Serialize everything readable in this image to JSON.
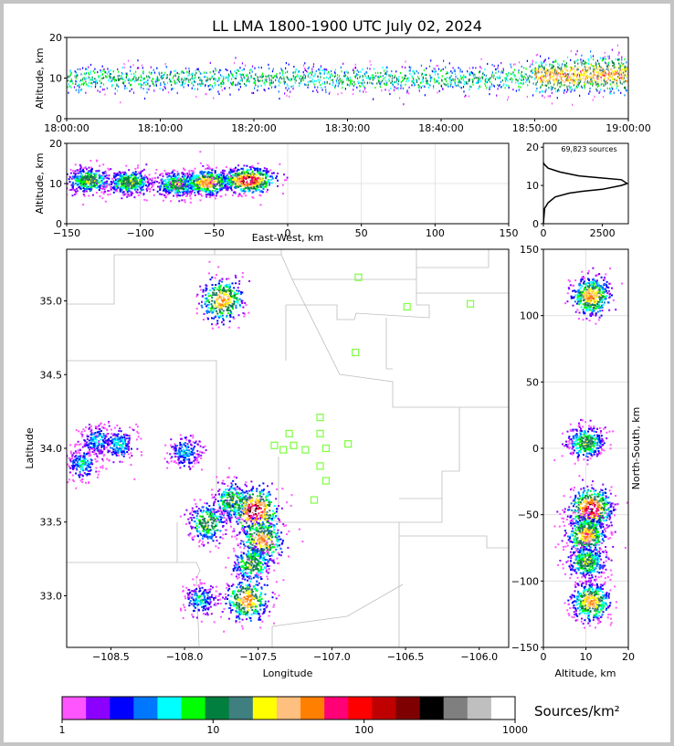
{
  "title": "LL LMA 1800-1900 UTC July 02, 2024",
  "colors": {
    "palette": [
      "#ff55ff",
      "#8c00ff",
      "#0000ff",
      "#0077ff",
      "#00ffff",
      "#00ff00",
      "#007f3f",
      "#3f7f7f",
      "#ffff00",
      "#ffbf7f",
      "#ff7f00",
      "#ff0077",
      "#ff0000",
      "#bf0000",
      "#7f0000",
      "#000000",
      "#7f7f7f",
      "#bfbfbf",
      "#ffffff"
    ],
    "station": "#7cff3f",
    "border": "#bdbdbd"
  },
  "chart_data": [
    {
      "type": "heatmap",
      "name": "time-height",
      "xlabel": "",
      "ylabel": "Altitude, km",
      "xlim": [
        "18:00:00",
        "19:00:00"
      ],
      "ylim": [
        0,
        20
      ],
      "xticks": [
        "18:00:00",
        "18:10:00",
        "18:20:00",
        "18:30:00",
        "18:40:00",
        "18:50:00",
        "19:00:00"
      ],
      "yticks": [
        0,
        10,
        20
      ],
      "activity": [
        {
          "t": "18:00:00",
          "z_center": 10,
          "z_spread": 3
        },
        {
          "t": "18:45:00",
          "z_center": 10,
          "z_spread": 3
        },
        {
          "t": "18:50:00",
          "z_center": 10.5,
          "z_spread": 3.5
        },
        {
          "t": "18:55:00",
          "z_center": 11,
          "z_spread": 4
        },
        {
          "t": "19:00:00",
          "z_center": 11,
          "z_spread": 4
        }
      ],
      "peak_period": [
        "18:50:00",
        "19:00:00"
      ]
    },
    {
      "type": "heatmap",
      "name": "east-west-altitude",
      "xlabel": "East-West, km",
      "ylabel": "Altitude, km",
      "xlim": [
        -150,
        150
      ],
      "ylim": [
        0,
        20
      ],
      "xticks": [
        -150,
        -100,
        -50,
        0,
        50,
        100,
        150
      ],
      "yticks": [
        0,
        10,
        20
      ],
      "clusters": [
        {
          "x": -135,
          "z": 11,
          "intensity": "medium"
        },
        {
          "x": -108,
          "z": 10.5,
          "intensity": "medium"
        },
        {
          "x": -75,
          "z": 10,
          "intensity": "medium"
        },
        {
          "x": -55,
          "z": 10.5,
          "intensity": "high"
        },
        {
          "x": -27,
          "z": 11,
          "intensity": "very high"
        }
      ]
    },
    {
      "type": "line",
      "name": "altitude-histogram",
      "annotation": "69,823 sources",
      "xlim": [
        0,
        3600
      ],
      "ylim": [
        0,
        21
      ],
      "xticks": [
        0,
        2500
      ],
      "yticks": [
        0,
        10,
        20
      ],
      "series": [
        {
          "x": [
            0,
            50,
            200,
            500,
            1100,
            1700,
            2500,
            3300,
            3550,
            3300,
            2400,
            1500,
            700,
            200,
            40,
            0
          ],
          "y": [
            0,
            4,
            5.5,
            7,
            8,
            8.5,
            9,
            10,
            10.5,
            11.5,
            12,
            12.5,
            13.5,
            14.5,
            15.5,
            16
          ]
        }
      ]
    },
    {
      "type": "heatmap",
      "name": "plan-view",
      "xlabel": "Longitude",
      "ylabel": "Latitude",
      "xlim": [
        -108.8,
        -105.8
      ],
      "ylim": [
        32.65,
        35.35
      ],
      "xticks": [
        -108.5,
        -108.0,
        -107.5,
        -107.0,
        -106.5,
        -106.0
      ],
      "yticks": [
        33.0,
        33.5,
        34.0,
        34.5,
        35.0
      ],
      "clusters": [
        {
          "lon": -107.75,
          "lat": 35.01,
          "intensity": "high"
        },
        {
          "lon": -108.6,
          "lat": 34.06,
          "intensity": "low"
        },
        {
          "lon": -108.7,
          "lat": 33.9,
          "intensity": "low"
        },
        {
          "lon": -108.45,
          "lat": 34.03,
          "intensity": "low"
        },
        {
          "lon": -108.0,
          "lat": 33.98,
          "intensity": "low"
        },
        {
          "lon": -107.85,
          "lat": 33.5,
          "intensity": "medium"
        },
        {
          "lon": -107.68,
          "lat": 33.65,
          "intensity": "medium"
        },
        {
          "lon": -107.53,
          "lat": 33.58,
          "intensity": "very high"
        },
        {
          "lon": -107.48,
          "lat": 33.38,
          "intensity": "high"
        },
        {
          "lon": -107.55,
          "lat": 33.22,
          "intensity": "medium"
        },
        {
          "lon": -107.58,
          "lat": 32.98,
          "intensity": "high"
        },
        {
          "lon": -107.9,
          "lat": 32.98,
          "intensity": "low"
        }
      ],
      "stations": [
        {
          "lon": -106.82,
          "lat": 35.16
        },
        {
          "lon": -106.49,
          "lat": 34.96
        },
        {
          "lon": -106.06,
          "lat": 34.98
        },
        {
          "lon": -106.84,
          "lat": 34.65
        },
        {
          "lon": -107.08,
          "lat": 34.21
        },
        {
          "lon": -107.29,
          "lat": 34.1
        },
        {
          "lon": -107.08,
          "lat": 34.1
        },
        {
          "lon": -107.39,
          "lat": 34.02
        },
        {
          "lon": -107.33,
          "lat": 33.99
        },
        {
          "lon": -107.26,
          "lat": 34.02
        },
        {
          "lon": -107.18,
          "lat": 33.99
        },
        {
          "lon": -107.04,
          "lat": 34.0
        },
        {
          "lon": -106.89,
          "lat": 34.03
        },
        {
          "lon": -107.08,
          "lat": 33.88
        },
        {
          "lon": -107.04,
          "lat": 33.78
        },
        {
          "lon": -107.12,
          "lat": 33.65
        }
      ]
    },
    {
      "type": "heatmap",
      "name": "north-south-altitude",
      "xlabel": "Altitude, km",
      "ylabel": "North-South, km",
      "xlim": [
        0,
        20
      ],
      "ylim": [
        -150,
        150
      ],
      "xticks": [
        0,
        10,
        20
      ],
      "yticks": [
        -150,
        -100,
        -50,
        0,
        50,
        100,
        150
      ],
      "clusters": [
        {
          "z": 11,
          "ns": 115,
          "intensity": "high"
        },
        {
          "z": 10,
          "ns": 5,
          "intensity": "medium"
        },
        {
          "z": 11,
          "ns": -45,
          "intensity": "very high"
        },
        {
          "z": 10,
          "ns": -65,
          "intensity": "high"
        },
        {
          "z": 10,
          "ns": -85,
          "intensity": "medium"
        },
        {
          "z": 11,
          "ns": -115,
          "intensity": "high"
        }
      ]
    }
  ],
  "colorbar": {
    "label": "Sources/km²",
    "ticks": [
      "1",
      "10",
      "100",
      "1000"
    ]
  }
}
